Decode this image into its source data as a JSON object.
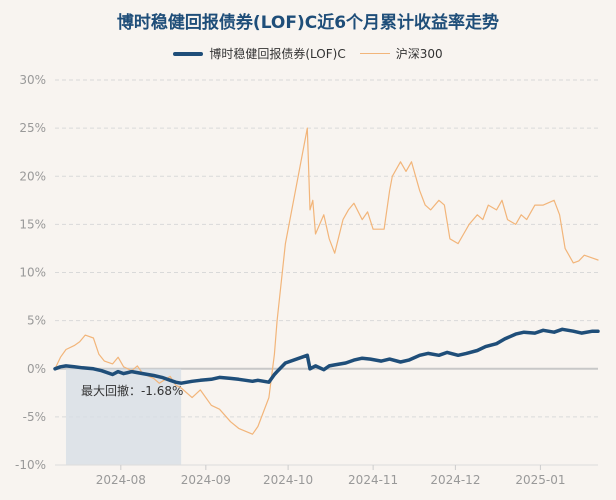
{
  "chart_data": {
    "type": "line",
    "title": "博时稳健回报债券(LOF)C近6个月累计收益率走势",
    "y_tick_labels": [
      "30%",
      "25%",
      "20%",
      "15%",
      "10%",
      "5%",
      "0%",
      "-5%",
      "-10%"
    ],
    "y_tick_values": [
      30,
      25,
      20,
      15,
      10,
      5,
      0,
      -5,
      -10
    ],
    "ylim": [
      -10,
      30
    ],
    "xlim": [
      "2024-07-08",
      "2025-01-22"
    ],
    "x_tick_labels": [
      "2024-08",
      "2024-09",
      "2024-10",
      "2024-11",
      "2024-12",
      "2025-01"
    ],
    "x_tick_dates": [
      "2024-08-01",
      "2024-09-01",
      "2024-10-01",
      "2024-11-01",
      "2024-12-01",
      "2025-01-01"
    ],
    "grid": true,
    "legend_placement": "top-center",
    "max_drawdown": {
      "label": "最大回撤：-1.68%",
      "start": "2024-07-12",
      "end": "2024-08-23"
    },
    "series": [
      {
        "name": "博时稳健回报债券(LOF)C",
        "color": "#1f4e79",
        "points": [
          [
            "2024-07-08",
            0.0
          ],
          [
            "2024-07-10",
            0.2
          ],
          [
            "2024-07-12",
            0.3
          ],
          [
            "2024-07-15",
            0.2
          ],
          [
            "2024-07-18",
            0.1
          ],
          [
            "2024-07-22",
            0.0
          ],
          [
            "2024-07-25",
            -0.2
          ],
          [
            "2024-07-29",
            -0.6
          ],
          [
            "2024-07-31",
            -0.3
          ],
          [
            "2024-08-02",
            -0.5
          ],
          [
            "2024-08-05",
            -0.3
          ],
          [
            "2024-08-07",
            -0.4
          ],
          [
            "2024-08-09",
            -0.5
          ],
          [
            "2024-08-13",
            -0.7
          ],
          [
            "2024-08-16",
            -0.9
          ],
          [
            "2024-08-19",
            -1.2
          ],
          [
            "2024-08-21",
            -1.4
          ],
          [
            "2024-08-23",
            -1.5
          ],
          [
            "2024-08-27",
            -1.3
          ],
          [
            "2024-08-30",
            -1.2
          ],
          [
            "2024-09-03",
            -1.1
          ],
          [
            "2024-09-06",
            -0.9
          ],
          [
            "2024-09-10",
            -1.0
          ],
          [
            "2024-09-13",
            -1.1
          ],
          [
            "2024-09-18",
            -1.3
          ],
          [
            "2024-09-20",
            -1.2
          ],
          [
            "2024-09-24",
            -1.4
          ],
          [
            "2024-09-26",
            -0.6
          ],
          [
            "2024-09-27",
            -0.3
          ],
          [
            "2024-09-30",
            0.6
          ],
          [
            "2024-10-08",
            1.4
          ],
          [
            "2024-10-09",
            0.0
          ],
          [
            "2024-10-11",
            0.3
          ],
          [
            "2024-10-14",
            -0.1
          ],
          [
            "2024-10-16",
            0.3
          ],
          [
            "2024-10-18",
            0.4
          ],
          [
            "2024-10-22",
            0.6
          ],
          [
            "2024-10-25",
            0.9
          ],
          [
            "2024-10-28",
            1.1
          ],
          [
            "2024-10-31",
            1.0
          ],
          [
            "2024-11-04",
            0.8
          ],
          [
            "2024-11-07",
            1.0
          ],
          [
            "2024-11-11",
            0.7
          ],
          [
            "2024-11-14",
            0.9
          ],
          [
            "2024-11-18",
            1.4
          ],
          [
            "2024-11-21",
            1.6
          ],
          [
            "2024-11-25",
            1.4
          ],
          [
            "2024-11-28",
            1.7
          ],
          [
            "2024-12-02",
            1.4
          ],
          [
            "2024-12-05",
            1.6
          ],
          [
            "2024-12-09",
            1.9
          ],
          [
            "2024-12-12",
            2.3
          ],
          [
            "2024-12-16",
            2.6
          ],
          [
            "2024-12-19",
            3.1
          ],
          [
            "2024-12-23",
            3.6
          ],
          [
            "2024-12-26",
            3.8
          ],
          [
            "2024-12-30",
            3.7
          ],
          [
            "2025-01-02",
            4.0
          ],
          [
            "2025-01-06",
            3.8
          ],
          [
            "2025-01-09",
            4.1
          ],
          [
            "2025-01-13",
            3.9
          ],
          [
            "2025-01-16",
            3.7
          ],
          [
            "2025-01-20",
            3.9
          ],
          [
            "2025-01-22",
            3.9
          ]
        ]
      },
      {
        "name": "沪深300",
        "color": "#f2b57a",
        "points": [
          [
            "2024-07-08",
            0.0
          ],
          [
            "2024-07-10",
            1.2
          ],
          [
            "2024-07-12",
            2.0
          ],
          [
            "2024-07-15",
            2.4
          ],
          [
            "2024-07-17",
            2.8
          ],
          [
            "2024-07-19",
            3.5
          ],
          [
            "2024-07-22",
            3.2
          ],
          [
            "2024-07-24",
            1.5
          ],
          [
            "2024-07-26",
            0.8
          ],
          [
            "2024-07-29",
            0.5
          ],
          [
            "2024-07-31",
            1.2
          ],
          [
            "2024-08-02",
            0.2
          ],
          [
            "2024-08-05",
            -0.2
          ],
          [
            "2024-08-07",
            0.3
          ],
          [
            "2024-08-09",
            -0.5
          ],
          [
            "2024-08-13",
            -1.0
          ],
          [
            "2024-08-15",
            -1.5
          ],
          [
            "2024-08-19",
            -0.8
          ],
          [
            "2024-08-21",
            -1.7
          ],
          [
            "2024-08-23",
            -2.0
          ],
          [
            "2024-08-27",
            -3.0
          ],
          [
            "2024-08-30",
            -2.2
          ],
          [
            "2024-09-03",
            -3.8
          ],
          [
            "2024-09-06",
            -4.2
          ],
          [
            "2024-09-10",
            -5.5
          ],
          [
            "2024-09-13",
            -6.2
          ],
          [
            "2024-09-18",
            -6.8
          ],
          [
            "2024-09-20",
            -6.0
          ],
          [
            "2024-09-24",
            -3.0
          ],
          [
            "2024-09-26",
            1.5
          ],
          [
            "2024-09-27",
            5.0
          ],
          [
            "2024-09-30",
            13.0
          ],
          [
            "2024-10-08",
            25.0
          ],
          [
            "2024-10-09",
            16.5
          ],
          [
            "2024-10-10",
            17.5
          ],
          [
            "2024-10-11",
            14.0
          ],
          [
            "2024-10-14",
            16.0
          ],
          [
            "2024-10-16",
            13.5
          ],
          [
            "2024-10-18",
            12.0
          ],
          [
            "2024-10-21",
            15.5
          ],
          [
            "2024-10-23",
            16.5
          ],
          [
            "2024-10-25",
            17.2
          ],
          [
            "2024-10-28",
            15.5
          ],
          [
            "2024-10-30",
            16.3
          ],
          [
            "2024-11-01",
            14.5
          ],
          [
            "2024-11-05",
            14.5
          ],
          [
            "2024-11-07",
            18.5
          ],
          [
            "2024-11-08",
            20.0
          ],
          [
            "2024-11-11",
            21.5
          ],
          [
            "2024-11-13",
            20.5
          ],
          [
            "2024-11-15",
            21.5
          ],
          [
            "2024-11-18",
            18.5
          ],
          [
            "2024-11-20",
            17.0
          ],
          [
            "2024-11-22",
            16.5
          ],
          [
            "2024-11-25",
            17.5
          ],
          [
            "2024-11-27",
            17.0
          ],
          [
            "2024-11-29",
            13.5
          ],
          [
            "2024-12-02",
            13.0
          ],
          [
            "2024-12-04",
            14.0
          ],
          [
            "2024-12-06",
            15.0
          ],
          [
            "2024-12-09",
            16.0
          ],
          [
            "2024-12-11",
            15.5
          ],
          [
            "2024-12-13",
            17.0
          ],
          [
            "2024-12-16",
            16.5
          ],
          [
            "2024-12-18",
            17.5
          ],
          [
            "2024-12-20",
            15.5
          ],
          [
            "2024-12-23",
            15.0
          ],
          [
            "2024-12-25",
            16.0
          ],
          [
            "2024-12-27",
            15.5
          ],
          [
            "2024-12-30",
            17.0
          ],
          [
            "2025-01-02",
            17.0
          ],
          [
            "2025-01-06",
            17.5
          ],
          [
            "2025-01-08",
            16.0
          ],
          [
            "2025-01-10",
            12.5
          ],
          [
            "2025-01-13",
            11.0
          ],
          [
            "2025-01-15",
            11.2
          ],
          [
            "2025-01-17",
            11.8
          ],
          [
            "2025-01-20",
            11.5
          ],
          [
            "2025-01-22",
            11.3
          ]
        ]
      }
    ]
  }
}
